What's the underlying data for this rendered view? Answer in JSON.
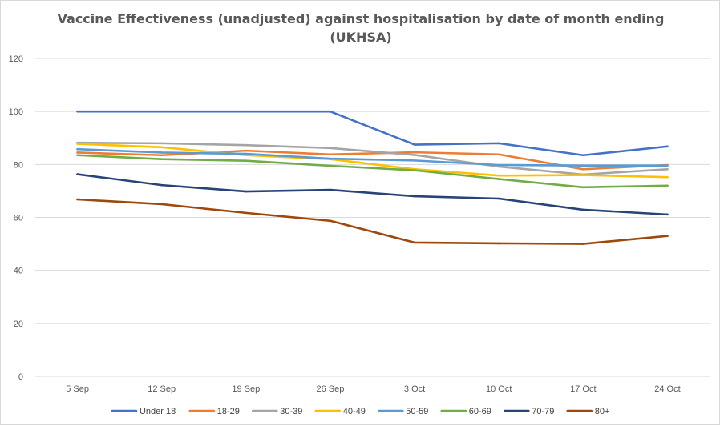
{
  "chart_data": {
    "type": "line",
    "title_lines": [
      "Vaccine Effectiveness (unadjusted) against hospitalisation by date of month ending",
      "(UKHSA)"
    ],
    "xlabel": "",
    "ylabel": "",
    "categories": [
      "5 Sep",
      "12 Sep",
      "19 Sep",
      "26 Sep",
      "3 Oct",
      "10 Oct",
      "17 Oct",
      "24 Oct"
    ],
    "ylim": [
      0,
      120
    ],
    "yticks": [
      0,
      20,
      40,
      60,
      80,
      100,
      120
    ],
    "grid": true,
    "legend_position": "bottom",
    "series": [
      {
        "name": "Under 18",
        "color": "#4472C4",
        "values": [
          100,
          100,
          100,
          100,
          87.5,
          88,
          83.5,
          86.8
        ]
      },
      {
        "name": "18-29",
        "color": "#ED7D31",
        "values": [
          84.5,
          83.5,
          85.2,
          83.8,
          84.6,
          83.8,
          78.2,
          79.8
        ]
      },
      {
        "name": "30-39",
        "color": "#A5A5A5",
        "values": [
          88.2,
          88,
          87.3,
          86.2,
          83.6,
          79.2,
          76.2,
          78.2
        ]
      },
      {
        "name": "40-49",
        "color": "#FFC000",
        "values": [
          87.8,
          86.5,
          83.5,
          82,
          78.2,
          75.8,
          76,
          75.2
        ]
      },
      {
        "name": "50-59",
        "color": "#5B9BD5",
        "values": [
          85.8,
          84.5,
          84,
          82.2,
          81.5,
          79.8,
          79.6,
          79.6
        ]
      },
      {
        "name": "60-69",
        "color": "#70AD47",
        "values": [
          83.5,
          82,
          81.4,
          79.5,
          77.8,
          74.5,
          71.4,
          72
        ]
      },
      {
        "name": "70-79",
        "color": "#264478",
        "values": [
          76.3,
          72.2,
          69.8,
          70.4,
          68,
          67.1,
          62.9,
          61.1
        ]
      },
      {
        "name": "80+",
        "color": "#9E480E",
        "values": [
          66.8,
          65,
          61.7,
          58.7,
          50.5,
          50.2,
          50,
          53
        ]
      }
    ]
  }
}
